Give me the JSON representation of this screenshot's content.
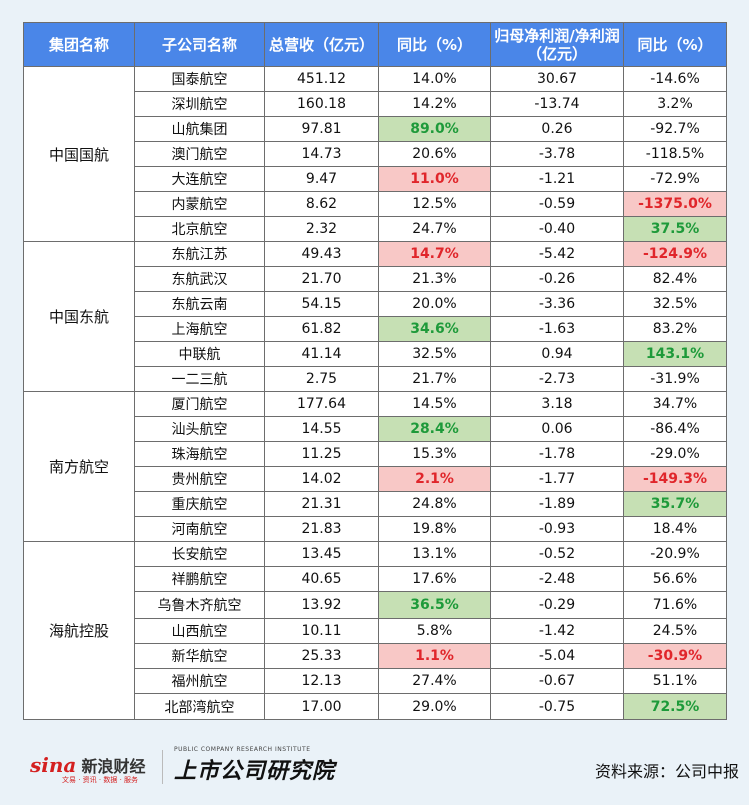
{
  "headers": [
    "集团名称",
    "子公司名称",
    "总营收（亿元）",
    "同比（%）",
    "归母净利润/净利润（亿元）",
    "同比（%）"
  ],
  "groups": [
    {
      "name": "中国国航",
      "rows": [
        {
          "company": "国泰航空",
          "revenue": "451.12",
          "rev_yoy": "14.0%",
          "profit": "30.67",
          "profit_yoy": "-14.6%"
        },
        {
          "company": "深圳航空",
          "revenue": "160.18",
          "rev_yoy": "14.2%",
          "profit": "-13.74",
          "profit_yoy": "3.2%"
        },
        {
          "company": "山航集团",
          "revenue": "97.81",
          "rev_yoy": "89.0%",
          "profit": "0.26",
          "profit_yoy": "-92.7%",
          "rev_hl": "green"
        },
        {
          "company": "澳门航空",
          "revenue": "14.73",
          "rev_yoy": "20.6%",
          "profit": "-3.78",
          "profit_yoy": "-118.5%"
        },
        {
          "company": "大连航空",
          "revenue": "9.47",
          "rev_yoy": "11.0%",
          "profit": "-1.21",
          "profit_yoy": "-72.9%",
          "rev_hl": "red"
        },
        {
          "company": "内蒙航空",
          "revenue": "8.62",
          "rev_yoy": "12.5%",
          "profit": "-0.59",
          "profit_yoy": "-1375.0%",
          "profit_hl": "red"
        },
        {
          "company": "北京航空",
          "revenue": "2.32",
          "rev_yoy": "24.7%",
          "profit": "-0.40",
          "profit_yoy": "37.5%",
          "profit_hl": "green"
        }
      ]
    },
    {
      "name": "中国东航",
      "rows": [
        {
          "company": "东航江苏",
          "revenue": "49.43",
          "rev_yoy": "14.7%",
          "profit": "-5.42",
          "profit_yoy": "-124.9%",
          "rev_hl": "red",
          "profit_hl": "red"
        },
        {
          "company": "东航武汉",
          "revenue": "21.70",
          "rev_yoy": "21.3%",
          "profit": "-0.26",
          "profit_yoy": "82.4%"
        },
        {
          "company": "东航云南",
          "revenue": "54.15",
          "rev_yoy": "20.0%",
          "profit": "-3.36",
          "profit_yoy": "32.5%"
        },
        {
          "company": "上海航空",
          "revenue": "61.82",
          "rev_yoy": "34.6%",
          "profit": "-1.63",
          "profit_yoy": "83.2%",
          "rev_hl": "green"
        },
        {
          "company": "中联航",
          "revenue": "41.14",
          "rev_yoy": "32.5%",
          "profit": "0.94",
          "profit_yoy": "143.1%",
          "profit_hl": "green"
        },
        {
          "company": "一二三航",
          "revenue": "2.75",
          "rev_yoy": "21.7%",
          "profit": "-2.73",
          "profit_yoy": "-31.9%"
        }
      ]
    },
    {
      "name": "南方航空",
      "rows": [
        {
          "company": "厦门航空",
          "revenue": "177.64",
          "rev_yoy": "14.5%",
          "profit": "3.18",
          "profit_yoy": "34.7%"
        },
        {
          "company": "汕头航空",
          "revenue": "14.55",
          "rev_yoy": "28.4%",
          "profit": "0.06",
          "profit_yoy": "-86.4%",
          "rev_hl": "green"
        },
        {
          "company": "珠海航空",
          "revenue": "11.25",
          "rev_yoy": "15.3%",
          "profit": "-1.78",
          "profit_yoy": "-29.0%"
        },
        {
          "company": "贵州航空",
          "revenue": "14.02",
          "rev_yoy": "2.1%",
          "profit": "-1.77",
          "profit_yoy": "-149.3%",
          "rev_hl": "red",
          "profit_hl": "red"
        },
        {
          "company": "重庆航空",
          "revenue": "21.31",
          "rev_yoy": "24.8%",
          "profit": "-1.89",
          "profit_yoy": "35.7%",
          "profit_hl": "green"
        },
        {
          "company": "河南航空",
          "revenue": "21.83",
          "rev_yoy": "19.8%",
          "profit": "-0.93",
          "profit_yoy": "18.4%"
        }
      ]
    },
    {
      "name": "海航控股",
      "rows": [
        {
          "company": "长安航空",
          "revenue": "13.45",
          "rev_yoy": "13.1%",
          "profit": "-0.52",
          "profit_yoy": "-20.9%"
        },
        {
          "company": "祥鹏航空",
          "revenue": "40.65",
          "rev_yoy": "17.6%",
          "profit": "-2.48",
          "profit_yoy": "56.6%"
        },
        {
          "company": "乌鲁木齐航空",
          "revenue": "13.92",
          "rev_yoy": "36.5%",
          "profit": "-0.29",
          "profit_yoy": "71.6%",
          "rev_hl": "green"
        },
        {
          "company": "山西航空",
          "revenue": "10.11",
          "rev_yoy": "5.8%",
          "profit": "-1.42",
          "profit_yoy": "24.5%"
        },
        {
          "company": "新华航空",
          "revenue": "25.33",
          "rev_yoy": "1.1%",
          "profit": "-5.04",
          "profit_yoy": "-30.9%",
          "rev_hl": "red",
          "profit_hl": "red"
        },
        {
          "company": "福州航空",
          "revenue": "12.13",
          "rev_yoy": "27.4%",
          "profit": "-0.67",
          "profit_yoy": "51.1%"
        },
        {
          "company": "北部湾航空",
          "revenue": "17.00",
          "rev_yoy": "29.0%",
          "profit": "-0.75",
          "profit_yoy": "72.5%",
          "profit_hl": "green"
        }
      ]
    }
  ],
  "footer": {
    "sina_logo": "sina",
    "sina_name": "新浪财经",
    "sina_sub": "文易 · 资讯 · 数据 · 服务",
    "institute_en": "PUBLIC COMPANY RESEARCH INSTITUTE",
    "institute_cn": "上市公司研究院",
    "source": "资料来源：公司中报"
  },
  "colors": {
    "header_bg": "#4a86e8",
    "highlight_green": "#c6e0b4",
    "highlight_red": "#f8c8c6"
  }
}
